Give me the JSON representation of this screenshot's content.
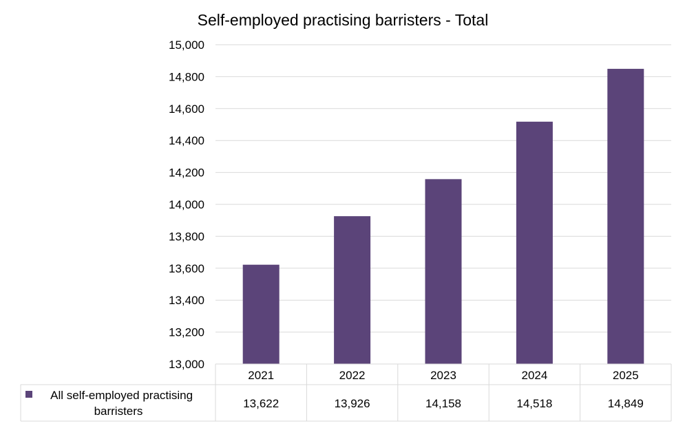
{
  "chart_data": {
    "type": "bar",
    "title": "Self-employed practising barristers - Total",
    "xlabel": "",
    "ylabel": "",
    "categories": [
      "2021",
      "2022",
      "2023",
      "2024",
      "2025"
    ],
    "series": [
      {
        "name": "All self-employed practising barristers",
        "legend_lines": [
          "All self-employed practising",
          "barristers"
        ],
        "values": [
          13622,
          13926,
          14158,
          14518,
          14849
        ],
        "value_labels": [
          "13,622",
          "13,926",
          "14,158",
          "14,518",
          "14,849"
        ],
        "color": "#5b4479"
      }
    ],
    "ylim": [
      13000,
      15000
    ],
    "y_ticks": [
      13000,
      13200,
      13400,
      13600,
      13800,
      14000,
      14200,
      14400,
      14600,
      14800,
      15000
    ],
    "y_tick_labels": [
      "13,000",
      "13,200",
      "13,400",
      "13,600",
      "13,800",
      "14,000",
      "14,200",
      "14,400",
      "14,600",
      "14,800",
      "15,000"
    ],
    "grid": true,
    "legend": "data-table",
    "grid_color": "#d9d9d9",
    "border_color": "#d9d9d9"
  }
}
